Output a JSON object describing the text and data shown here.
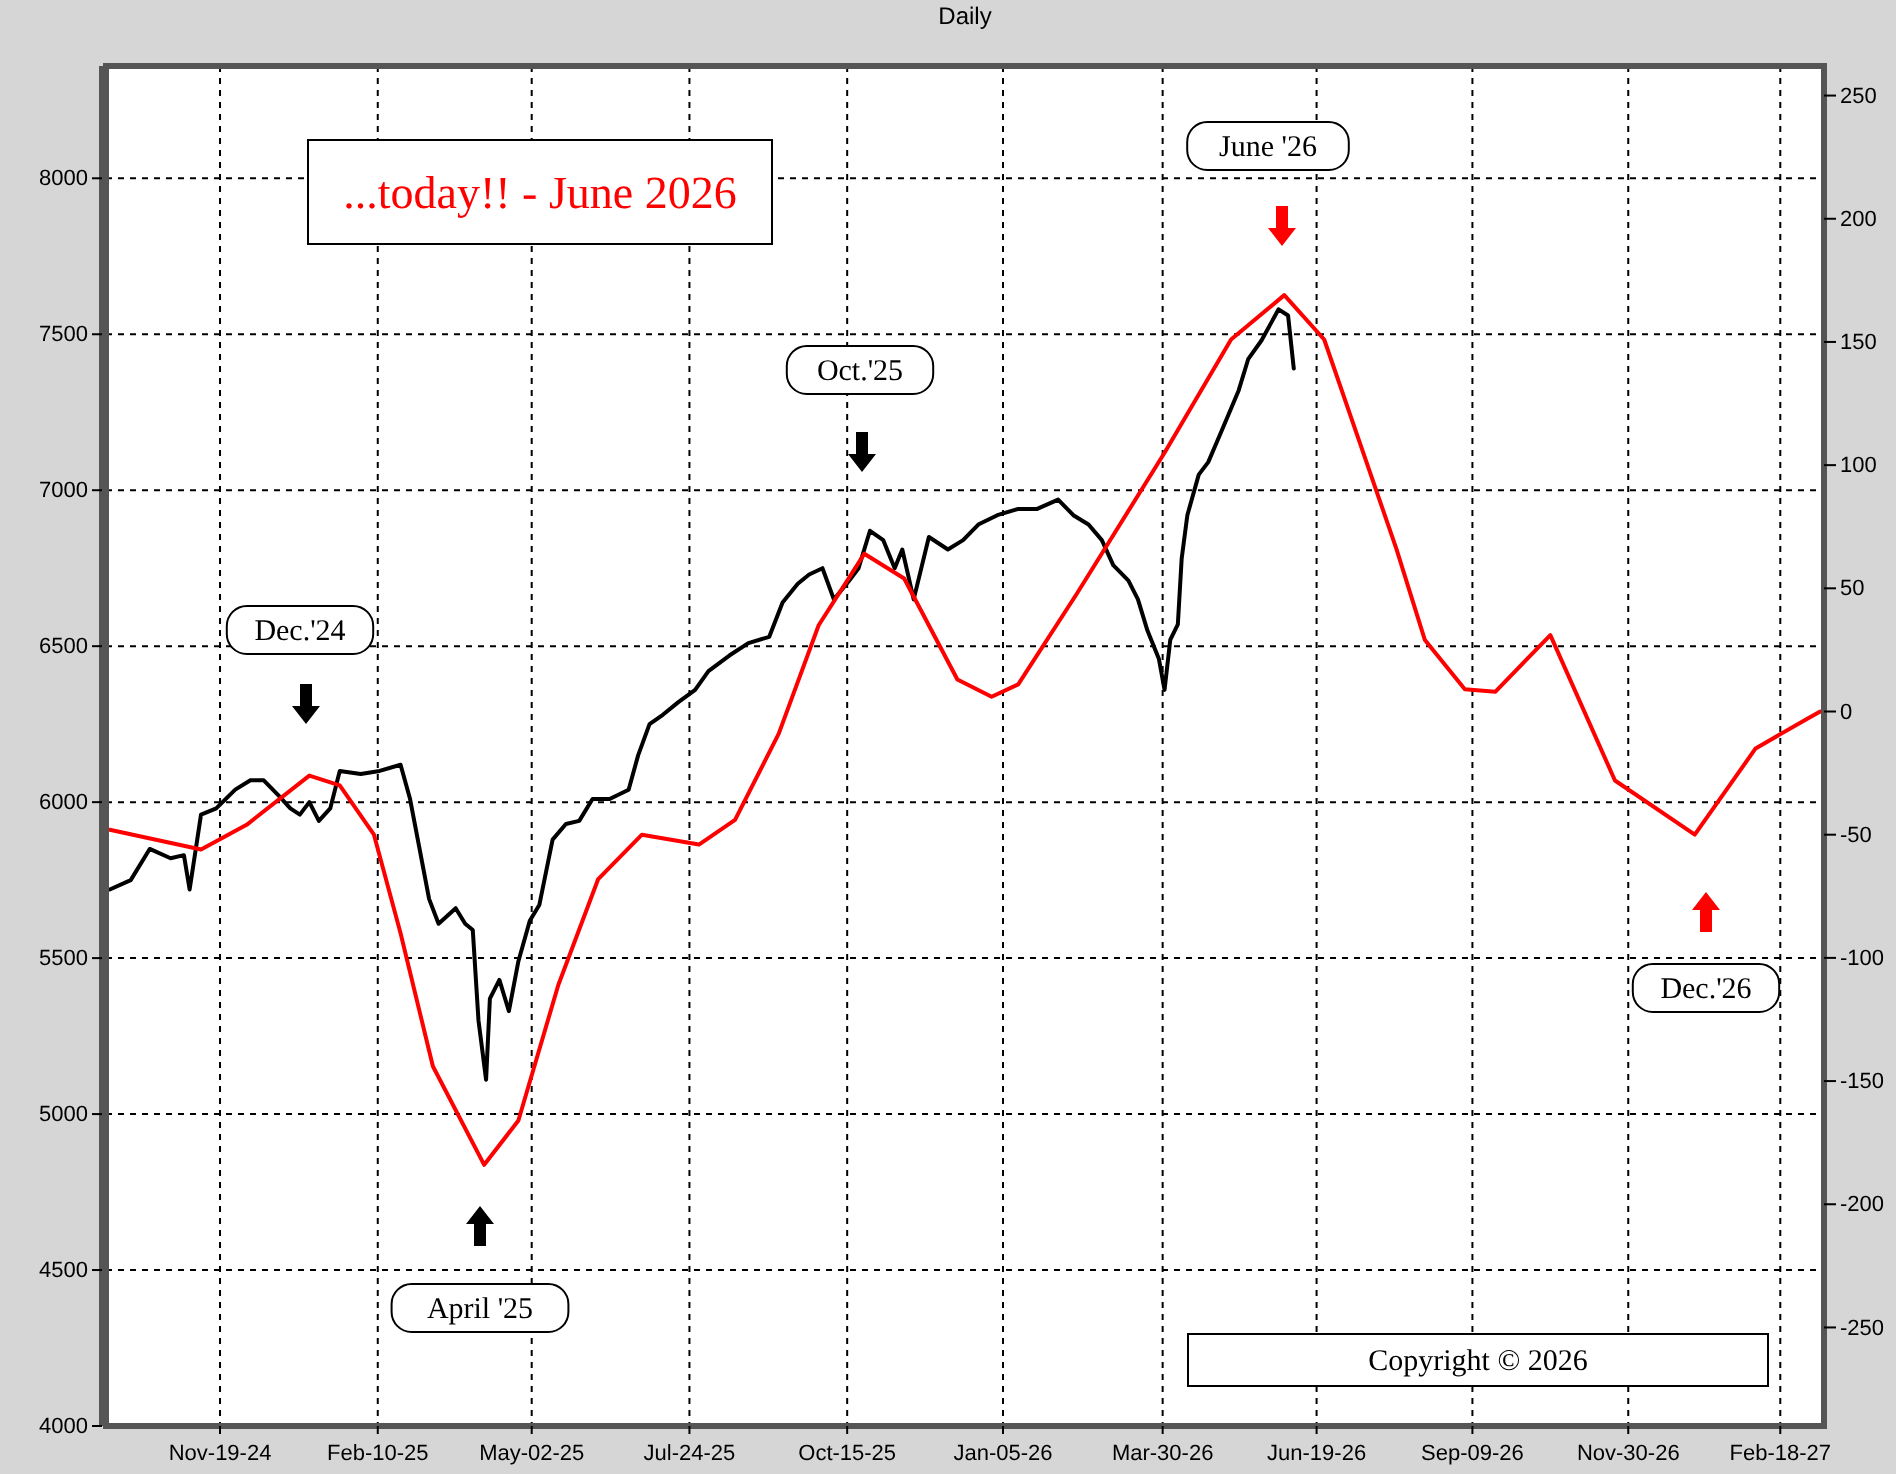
{
  "chart_data": {
    "type": "line",
    "title": "Daily",
    "xlim": [
      "2024-09-20",
      "2027-03-13"
    ],
    "xticks": [
      {
        "value": "2024-11-19",
        "label": "Nov-19-24"
      },
      {
        "value": "2025-02-10",
        "label": "Feb-10-25"
      },
      {
        "value": "2025-05-02",
        "label": "May-02-25"
      },
      {
        "value": "2025-07-24",
        "label": "Jul-24-25"
      },
      {
        "value": "2025-10-15",
        "label": "Oct-15-25"
      },
      {
        "value": "2026-01-05",
        "label": "Jan-05-26"
      },
      {
        "value": "2026-03-30",
        "label": "Mar-30-26"
      },
      {
        "value": "2026-06-19",
        "label": "Jun-19-26"
      },
      {
        "value": "2026-09-09",
        "label": "Sep-09-26"
      },
      {
        "value": "2026-11-30",
        "label": "Nov-30-26"
      },
      {
        "value": "2027-02-18",
        "label": "Feb-18-27"
      }
    ],
    "ylim": [
      4000,
      8360
    ],
    "yticks": [
      4000,
      4500,
      5000,
      5500,
      6000,
      6500,
      7000,
      7500,
      8000
    ],
    "y2lim": [
      -290,
      262
    ],
    "y2ticks": [
      -250,
      -200,
      -150,
      -100,
      -50,
      0,
      50,
      100,
      150,
      200,
      250
    ],
    "grid": true,
    "series": [
      {
        "color": "#000000",
        "x": [
          "2024-09-22",
          "2024-10-03",
          "2024-10-13",
          "2024-10-24",
          "2024-10-31",
          "2024-11-03",
          "2024-11-09",
          "2024-11-17",
          "2024-11-27",
          "2024-12-05",
          "2024-12-12",
          "2024-12-20",
          "2024-12-26",
          "2024-12-31",
          "2025-01-05",
          "2025-01-10",
          "2025-01-16",
          "2025-01-21",
          "2025-02-01",
          "2025-02-11",
          "2025-02-22",
          "2025-02-27",
          "2025-03-04",
          "2025-03-09",
          "2025-03-14",
          "2025-03-23",
          "2025-03-28",
          "2025-04-01",
          "2025-04-04",
          "2025-04-08",
          "2025-04-10",
          "2025-04-15",
          "2025-04-20",
          "2025-04-25",
          "2025-05-01",
          "2025-05-06",
          "2025-05-13",
          "2025-05-20",
          "2025-05-27",
          "2025-06-03",
          "2025-06-12",
          "2025-06-22",
          "2025-06-27",
          "2025-07-03",
          "2025-07-10",
          "2025-07-18",
          "2025-07-27",
          "2025-08-03",
          "2025-08-14",
          "2025-08-24",
          "2025-09-04",
          "2025-09-11",
          "2025-09-19",
          "2025-09-25",
          "2025-10-02",
          "2025-10-08",
          "2025-10-16",
          "2025-10-21",
          "2025-10-27",
          "2025-11-03",
          "2025-11-09",
          "2025-11-13",
          "2025-11-19",
          "2025-11-27",
          "2025-12-07",
          "2025-12-15",
          "2025-12-23",
          "2026-01-02",
          "2026-01-13",
          "2026-01-23",
          "2026-02-03",
          "2026-02-11",
          "2026-02-19",
          "2026-02-26",
          "2026-03-04",
          "2026-03-12",
          "2026-03-17",
          "2026-03-22",
          "2026-03-28",
          "2026-03-31",
          "2026-04-03",
          "2026-04-07",
          "2026-04-09",
          "2026-04-12",
          "2026-04-18",
          "2026-04-23",
          "2026-04-30",
          "2026-05-09",
          "2026-05-14",
          "2026-05-21",
          "2026-05-30",
          "2026-06-04",
          "2026-06-07"
        ],
        "values": [
          5720,
          5750,
          5850,
          5820,
          5830,
          5720,
          5960,
          5980,
          6040,
          6070,
          6070,
          6020,
          5980,
          5960,
          6000,
          5940,
          5980,
          6100,
          6090,
          6100,
          6120,
          6010,
          5850,
          5690,
          5610,
          5660,
          5610,
          5590,
          5300,
          5110,
          5370,
          5430,
          5330,
          5490,
          5620,
          5670,
          5880,
          5930,
          5940,
          6010,
          6010,
          6040,
          6150,
          6250,
          6280,
          6320,
          6360,
          6420,
          6470,
          6510,
          6530,
          6640,
          6700,
          6730,
          6750,
          6650,
          6710,
          6750,
          6870,
          6840,
          6750,
          6810,
          6650,
          6850,
          6810,
          6840,
          6890,
          6920,
          6940,
          6940,
          6970,
          6920,
          6890,
          6840,
          6760,
          6710,
          6650,
          6550,
          6460,
          6360,
          6520,
          6570,
          6780,
          6920,
          7050,
          7090,
          7190,
          7320,
          7420,
          7480,
          7580,
          7560,
          7390
        ]
      },
      {
        "color": "#ff0000",
        "axis": "y2",
        "x": [
          "2024-09-22",
          "2024-11-09",
          "2024-12-03",
          "2025-01-05",
          "2025-01-21",
          "2025-02-08",
          "2025-02-22",
          "2025-03-11",
          "2025-04-07",
          "2025-04-25",
          "2025-05-16",
          "2025-06-06",
          "2025-06-29",
          "2025-07-29",
          "2025-08-17",
          "2025-09-09",
          "2025-09-30",
          "2025-10-24",
          "2025-11-14",
          "2025-12-12",
          "2025-12-30",
          "2026-01-13",
          "2026-02-13",
          "2026-03-31",
          "2026-05-05",
          "2026-06-02",
          "2026-06-23",
          "2026-07-10",
          "2026-07-31",
          "2026-08-15",
          "2026-09-05",
          "2026-09-21",
          "2026-10-20",
          "2026-11-23",
          "2027-01-04",
          "2027-02-05",
          "2027-03-04",
          "2027-03-11"
        ],
        "values": [
          -48,
          -56,
          -46,
          -26,
          -30,
          -50,
          -90,
          -144,
          -184,
          -166,
          -111,
          -68,
          -50,
          -54,
          -44,
          -9,
          35,
          64,
          54,
          13,
          6,
          11,
          48,
          105,
          151,
          169,
          151,
          113,
          66,
          29,
          9,
          8,
          31,
          -28,
          -50,
          -15,
          -3,
          0
        ]
      }
    ],
    "annotations": [
      "...today!! - June 2026",
      "Dec.'24",
      "April '25",
      "Oct.'25",
      "June '26",
      "Dec.'26",
      "Copyright © 2026"
    ]
  }
}
